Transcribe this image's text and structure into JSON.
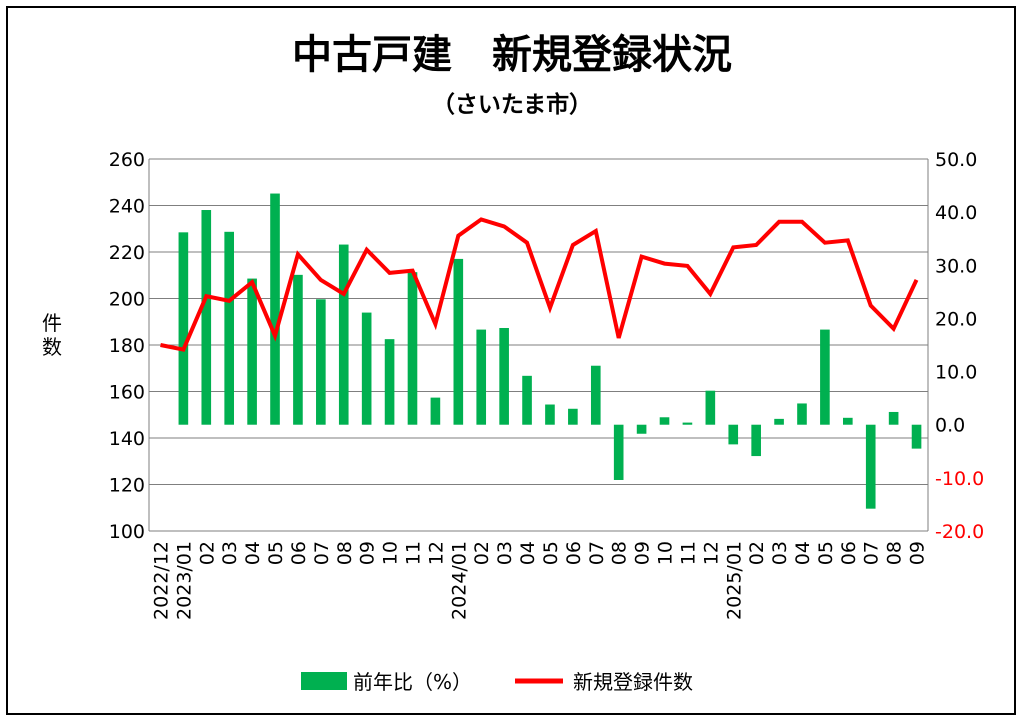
{
  "chart_data": {
    "type": "bar+line",
    "title": "中古戸建　新規登録状況",
    "subtitle": "（さいたま市）",
    "ylabel_left": "件数",
    "ylim_left": [
      100,
      260
    ],
    "yticks_left": [
      "100",
      "120",
      "140",
      "160",
      "180",
      "200",
      "220",
      "240",
      "260"
    ],
    "ylim_right": [
      -20,
      50
    ],
    "yticks_right": [
      "-20.0",
      "-10.0",
      "0.0",
      "10.0",
      "20.0",
      "30.0",
      "40.0",
      "50.0"
    ],
    "x_labels": [
      "2022/12",
      "2023/01",
      "02",
      "03",
      "04",
      "05",
      "06",
      "07",
      "08",
      "09",
      "10",
      "11",
      "12",
      "2024/01",
      "02",
      "03",
      "04",
      "05",
      "06",
      "07",
      "08",
      "09",
      "10",
      "11",
      "12",
      "2025/01",
      "02",
      "03",
      "04",
      "05",
      "06",
      "07",
      "08",
      "09"
    ],
    "legend": [
      "前年比（%）",
      "新規登録件数"
    ],
    "series": [
      {
        "name": "前年比（%）",
        "axis": "right",
        "type": "bar",
        "color": "#00b050",
        "values": [
          null,
          36.2,
          40.4,
          36.3,
          27.5,
          43.5,
          28.2,
          23.6,
          33.9,
          21.1,
          16.1,
          28.7,
          5.1,
          31.2,
          17.9,
          18.2,
          9.2,
          3.8,
          3.0,
          11.1,
          -10.4,
          -1.7,
          1.4,
          0.4,
          6.4,
          -3.7,
          -5.9,
          1.1,
          4.0,
          17.9,
          1.3,
          -15.8,
          2.4,
          -4.5
        ]
      },
      {
        "name": "新規登録件数",
        "axis": "left",
        "type": "line",
        "color": "#ff0000",
        "values": [
          180,
          178,
          201,
          199,
          207,
          184,
          219,
          208,
          202,
          221,
          211,
          212,
          189,
          227,
          234,
          231,
          224,
          196,
          223,
          229,
          183,
          218,
          215,
          214,
          202,
          222,
          223,
          233,
          233,
          224,
          225,
          197,
          187,
          208
        ]
      }
    ]
  },
  "colors": {
    "bar": "#00b050",
    "line": "#ff0000",
    "right_axis_negative": "#ff0000",
    "grid": "#7f7f7f"
  }
}
